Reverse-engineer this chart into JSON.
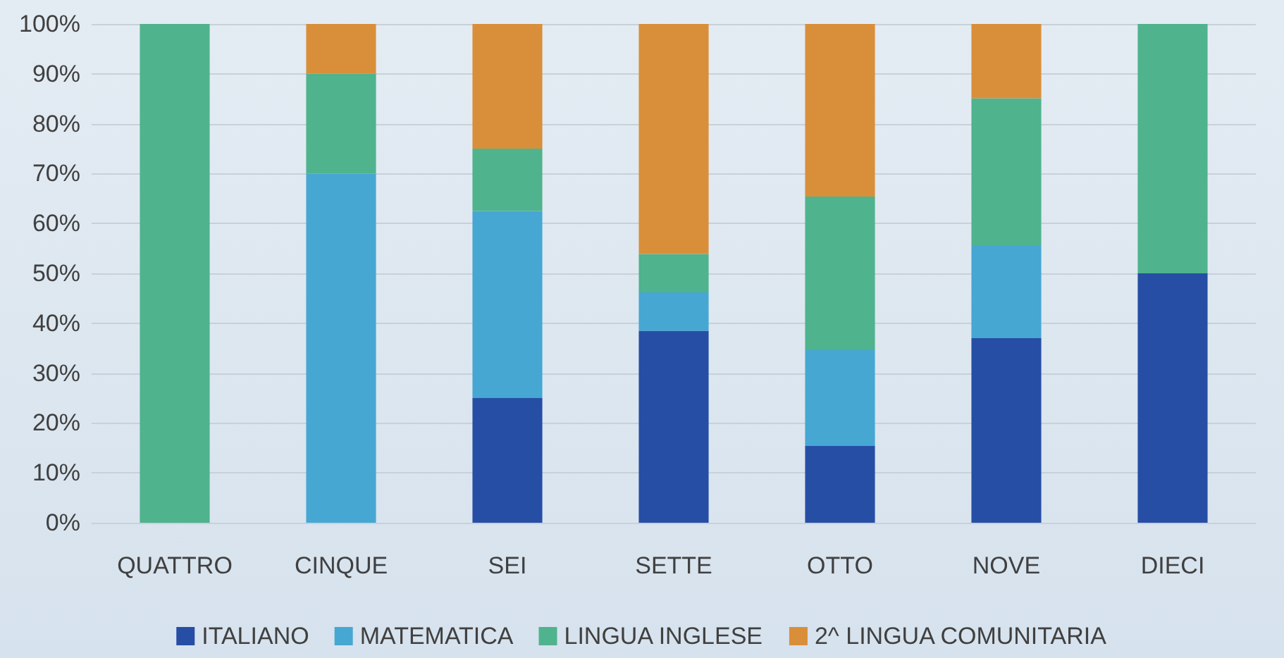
{
  "chart_data": {
    "type": "bar",
    "stacked": true,
    "categories": [
      "QUATTRO",
      "CINQUE",
      "SEI",
      "SETTE",
      "OTTO",
      "NOVE",
      "DIECI"
    ],
    "series": [
      {
        "name": "ITALIANO",
        "color": "#264ea5",
        "values": [
          0,
          0,
          25,
          38.5,
          15.4,
          37,
          50
        ]
      },
      {
        "name": "MATEMATICA",
        "color": "#46a7d3",
        "values": [
          0,
          70,
          37.5,
          7.7,
          19.2,
          18.5,
          0
        ]
      },
      {
        "name": "LINGUA INGLESE",
        "color": "#4fb38d",
        "values": [
          100,
          20,
          12.5,
          7.7,
          30.8,
          29.6,
          50
        ]
      },
      {
        "name": "2^ LINGUA COMUNITARIA",
        "color": "#d98f3a",
        "values": [
          0,
          10,
          25,
          46.1,
          34.6,
          14.9,
          0
        ]
      }
    ],
    "ylim": [
      0,
      100
    ],
    "yticks": [
      {
        "value": 0,
        "label": "0%"
      },
      {
        "value": 10,
        "label": "10%"
      },
      {
        "value": 20,
        "label": "20%"
      },
      {
        "value": 30,
        "label": "30%"
      },
      {
        "value": 40,
        "label": "40%"
      },
      {
        "value": 50,
        "label": "50%"
      },
      {
        "value": 60,
        "label": "60%"
      },
      {
        "value": 70,
        "label": "70%"
      },
      {
        "value": 80,
        "label": "80%"
      },
      {
        "value": 90,
        "label": "90%"
      },
      {
        "value": 100,
        "label": "100%"
      }
    ],
    "grid": "y",
    "legend": "bottom"
  }
}
